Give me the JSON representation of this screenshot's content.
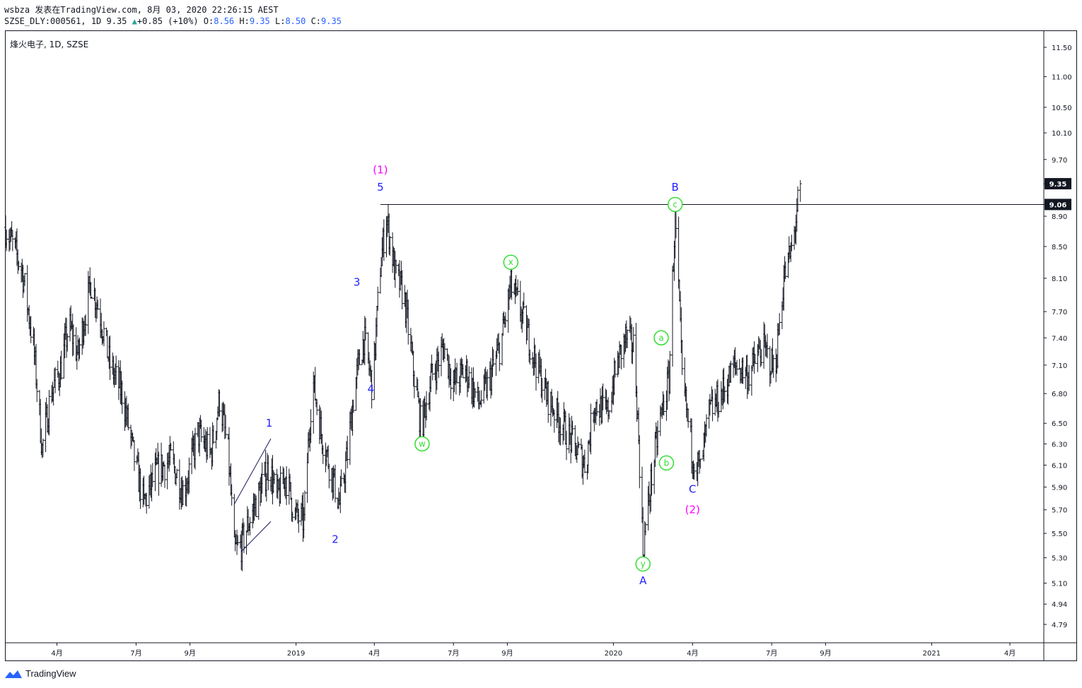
{
  "header": {
    "line1": "wsbza 发表在TradingView.com, 8月 03, 2020 22:26:15 AEST",
    "prefix": "SZSE_DLY:000561, 1D 9.35",
    "arrow": "▲",
    "change": "+0.85 (+10%)",
    "o_label": "O:",
    "o": "8.56",
    "h_label": "H:",
    "h": "9.35",
    "l_label": "L:",
    "l": "8.50",
    "c_label": "C:",
    "c": "9.35"
  },
  "symbol_label": "烽火电子, 1D, SZSE",
  "brand": "TradingView",
  "colors": {
    "bars": "#131722",
    "wave_blue": "#1f1fff",
    "wave_magenta": "#ff00ff",
    "wave_green": "#33dd33",
    "price_tag": "#131722"
  },
  "chart_data": {
    "type": "ohlc",
    "y_ticks": [
      "11.50",
      "11.00",
      "10.50",
      "10.10",
      "9.70",
      "9.35",
      "9.06",
      "8.90",
      "8.50",
      "8.10",
      "7.70",
      "7.40",
      "7.10",
      "6.80",
      "6.50",
      "6.30",
      "6.10",
      "5.90",
      "5.70",
      "5.50",
      "5.30",
      "5.10",
      "4.94",
      "4.79"
    ],
    "price_tags": [
      {
        "value": "9.35",
        "style": "last"
      },
      {
        "value": "9.06",
        "style": "line"
      }
    ],
    "x_ticks": [
      {
        "label": "4月",
        "date": "2018-04"
      },
      {
        "label": "7月",
        "date": "2018-07"
      },
      {
        "label": "9月",
        "date": "2018-09"
      },
      {
        "label": "2019",
        "date": "2019-01"
      },
      {
        "label": "4月",
        "date": "2019-04"
      },
      {
        "label": "7月",
        "date": "2019-07"
      },
      {
        "label": "9月",
        "date": "2019-09"
      },
      {
        "label": "2020",
        "date": "2020-01"
      },
      {
        "label": "4月",
        "date": "2020-04"
      },
      {
        "label": "7月",
        "date": "2020-07"
      },
      {
        "label": "9月",
        "date": "2020-09"
      },
      {
        "label": "2021",
        "date": "2021-01"
      },
      {
        "label": "4月",
        "date": "2021-04"
      }
    ],
    "path": [
      [
        "2018-02-01",
        8.75
      ],
      [
        "2018-02-20",
        8.2
      ],
      [
        "2018-03-05",
        7.3
      ],
      [
        "2018-03-15",
        6.25
      ],
      [
        "2018-03-25",
        6.8
      ],
      [
        "2018-04-05",
        7.05
      ],
      [
        "2018-04-15",
        7.55
      ],
      [
        "2018-04-25",
        7.2
      ],
      [
        "2018-05-10",
        8.05
      ],
      [
        "2018-05-20",
        7.7
      ],
      [
        "2018-06-01",
        7.1
      ],
      [
        "2018-06-15",
        6.8
      ],
      [
        "2018-06-28",
        6.2
      ],
      [
        "2018-07-10",
        5.75
      ],
      [
        "2018-07-25",
        6.05
      ],
      [
        "2018-08-10",
        6.15
      ],
      [
        "2018-08-25",
        5.85
      ],
      [
        "2018-09-10",
        6.4
      ],
      [
        "2018-09-25",
        6.2
      ],
      [
        "2018-10-05",
        6.75
      ],
      [
        "2018-10-15",
        6.2
      ],
      [
        "2018-10-22",
        5.35
      ],
      [
        "2018-10-30",
        5.4
      ],
      [
        "2018-11-10",
        5.65
      ],
      [
        "2018-11-20",
        5.85
      ],
      [
        "2018-12-01",
        6.1
      ],
      [
        "2018-12-10",
        5.8
      ],
      [
        "2018-12-20",
        6.0
      ],
      [
        "2018-12-31",
        5.65
      ],
      [
        "2019-01-10",
        5.6
      ],
      [
        "2019-01-20",
        6.95
      ],
      [
        "2019-01-30",
        6.4
      ],
      [
        "2019-02-10",
        6.05
      ],
      [
        "2019-02-20",
        5.75
      ],
      [
        "2019-03-01",
        6.2
      ],
      [
        "2019-03-10",
        6.9
      ],
      [
        "2019-03-20",
        7.4
      ],
      [
        "2019-03-30",
        6.85
      ],
      [
        "2019-04-08",
        8.25
      ],
      [
        "2019-04-15",
        8.9
      ],
      [
        "2019-04-25",
        8.15
      ],
      [
        "2019-05-05",
        7.9
      ],
      [
        "2019-05-15",
        7.1
      ],
      [
        "2019-05-25",
        6.45
      ],
      [
        "2019-06-05",
        6.95
      ],
      [
        "2019-06-20",
        7.3
      ],
      [
        "2019-07-01",
        6.9
      ],
      [
        "2019-07-15",
        7.05
      ],
      [
        "2019-07-30",
        6.7
      ],
      [
        "2019-08-10",
        6.9
      ],
      [
        "2019-08-25",
        7.35
      ],
      [
        "2019-09-05",
        8.0
      ],
      [
        "2019-09-15",
        7.75
      ],
      [
        "2019-09-30",
        7.25
      ],
      [
        "2019-10-15",
        6.8
      ],
      [
        "2019-10-30",
        6.55
      ],
      [
        "2019-11-15",
        6.3
      ],
      [
        "2019-11-30",
        6.1
      ],
      [
        "2019-12-10",
        6.7
      ],
      [
        "2019-12-25",
        6.6
      ],
      [
        "2020-01-05",
        7.1
      ],
      [
        "2020-01-15",
        7.4
      ],
      [
        "2020-01-25",
        7.3
      ],
      [
        "2020-02-04",
        5.35
      ],
      [
        "2020-02-14",
        6.0
      ],
      [
        "2020-02-24",
        6.55
      ],
      [
        "2020-03-05",
        6.95
      ],
      [
        "2020-03-12",
        8.9
      ],
      [
        "2020-03-20",
        6.95
      ],
      [
        "2020-04-01",
        6.2
      ],
      [
        "2020-04-10",
        6.05
      ],
      [
        "2020-04-20",
        6.6
      ],
      [
        "2020-05-05",
        6.8
      ],
      [
        "2020-05-20",
        7.1
      ],
      [
        "2020-06-05",
        7.0
      ],
      [
        "2020-06-20",
        7.3
      ],
      [
        "2020-07-05",
        7.05
      ],
      [
        "2020-07-15",
        8.1
      ],
      [
        "2020-07-25",
        8.5
      ],
      [
        "2020-08-03",
        9.35
      ]
    ],
    "resistance_level": 9.06,
    "resistance_start": "2019-04-08",
    "wedge": [
      [
        [
          "2018-10-22",
          5.75
        ],
        [
          "2018-12-03",
          6.35
        ]
      ],
      [
        [
          "2018-10-30",
          5.35
        ],
        [
          "2018-12-03",
          5.6
        ]
      ]
    ],
    "wave_labels": [
      {
        "text": "(1)",
        "date": "2019-04-08",
        "price": 9.55,
        "color": "magenta",
        "style": "plain"
      },
      {
        "text": "5",
        "date": "2019-04-08",
        "price": 9.3,
        "color": "blue",
        "style": "plain"
      },
      {
        "text": "3",
        "date": "2019-03-12",
        "price": 8.05,
        "color": "blue",
        "style": "plain"
      },
      {
        "text": "4",
        "date": "2019-03-28",
        "price": 6.85,
        "color": "blue",
        "style": "plain"
      },
      {
        "text": "1",
        "date": "2018-12-01",
        "price": 6.5,
        "color": "blue",
        "style": "plain"
      },
      {
        "text": "2",
        "date": "2019-02-15",
        "price": 5.45,
        "color": "blue",
        "style": "plain"
      },
      {
        "text": "w",
        "date": "2019-05-26",
        "price": 6.3,
        "color": "green",
        "style": "circle"
      },
      {
        "text": "x",
        "date": "2019-09-05",
        "price": 8.3,
        "color": "green",
        "style": "circle"
      },
      {
        "text": "y",
        "date": "2020-02-04",
        "price": 5.25,
        "color": "green",
        "style": "circle"
      },
      {
        "text": "A",
        "date": "2020-02-04",
        "price": 5.12,
        "color": "blue",
        "style": "plain"
      },
      {
        "text": "a",
        "date": "2020-02-25",
        "price": 7.4,
        "color": "green",
        "style": "circle"
      },
      {
        "text": "b",
        "date": "2020-03-02",
        "price": 6.12,
        "color": "green",
        "style": "circle"
      },
      {
        "text": "c",
        "date": "2020-03-12",
        "price": 9.06,
        "color": "green",
        "style": "circle"
      },
      {
        "text": "B",
        "date": "2020-03-12",
        "price": 9.3,
        "color": "blue",
        "style": "plain"
      },
      {
        "text": "C",
        "date": "2020-04-01",
        "price": 5.88,
        "color": "blue",
        "style": "plain"
      },
      {
        "text": "(2)",
        "date": "2020-04-01",
        "price": 5.7,
        "color": "magenta",
        "style": "plain"
      }
    ]
  }
}
